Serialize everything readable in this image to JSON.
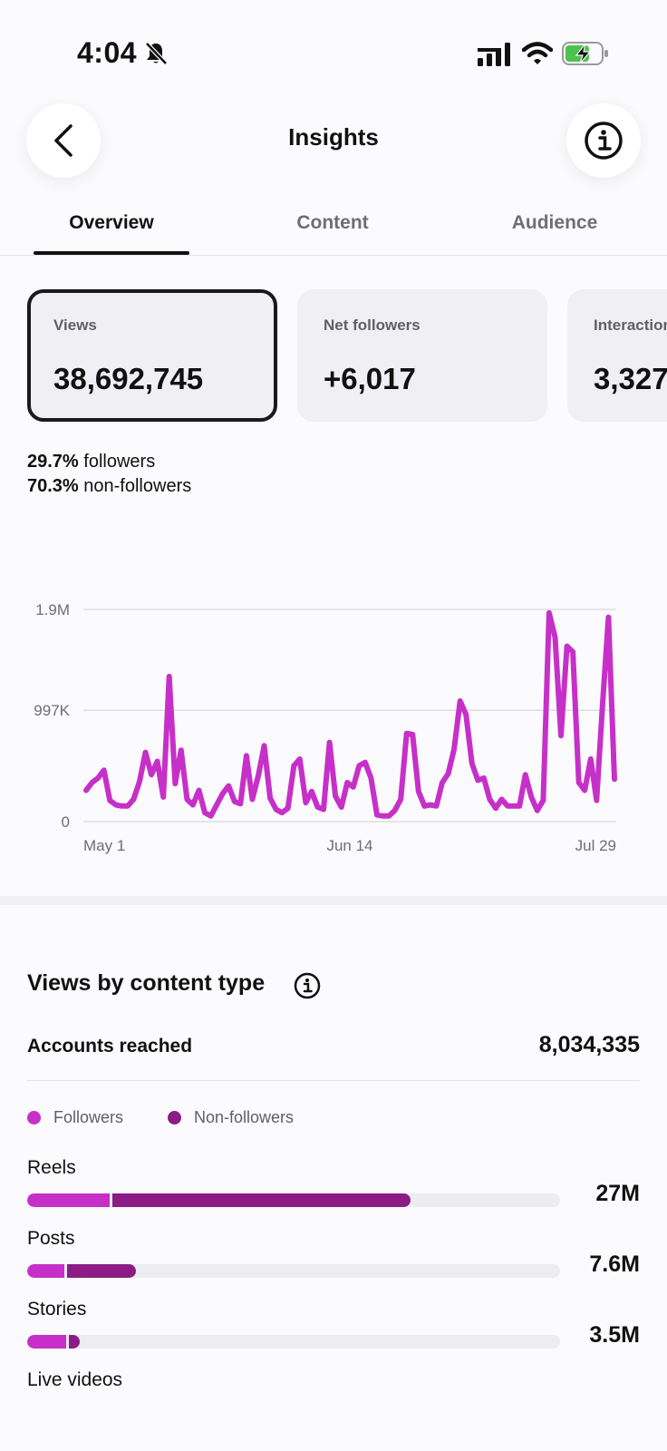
{
  "status_bar": {
    "time": "4:04",
    "icons": [
      "bell-slash-icon",
      "cellular-signal-icon",
      "wifi-icon",
      "battery-charging-icon"
    ]
  },
  "header": {
    "title": "Insights",
    "back_icon": "chevron-left-icon",
    "info_icon": "info-icon"
  },
  "tabs": [
    {
      "label": "Overview",
      "active": true
    },
    {
      "label": "Content",
      "active": false
    },
    {
      "label": "Audience",
      "active": false
    }
  ],
  "metric_cards": [
    {
      "label": "Views",
      "value": "38,692,745",
      "selected": true
    },
    {
      "label": "Net followers",
      "value": "+6,017",
      "selected": false
    },
    {
      "label": "Interactions",
      "value": "3,327",
      "selected": false
    }
  ],
  "audience_split": {
    "followers_pct": "29.7%",
    "followers_label": "followers",
    "nonfollowers_pct": "70.3%",
    "nonfollowers_label": "non-followers"
  },
  "chart_data": {
    "type": "line",
    "title": "",
    "xlabel": "",
    "ylabel": "",
    "x_tick_labels": [
      "May 1",
      "Jun 14",
      "Jul 29"
    ],
    "y_tick_labels": [
      "0",
      "997K",
      "1.9M"
    ],
    "ylim": [
      0,
      1900000
    ],
    "grid": true,
    "series": [
      {
        "color": "#c630c8",
        "values": [
          280000,
          350000,
          390000,
          460000,
          190000,
          150000,
          140000,
          140000,
          200000,
          360000,
          620000,
          420000,
          540000,
          220000,
          1300000,
          340000,
          640000,
          200000,
          150000,
          280000,
          80000,
          50000,
          150000,
          250000,
          320000,
          180000,
          160000,
          590000,
          200000,
          410000,
          680000,
          210000,
          110000,
          80000,
          120000,
          500000,
          560000,
          170000,
          270000,
          130000,
          110000,
          710000,
          230000,
          130000,
          350000,
          310000,
          500000,
          530000,
          390000,
          60000,
          50000,
          50000,
          100000,
          200000,
          790000,
          780000,
          270000,
          140000,
          150000,
          140000,
          350000,
          430000,
          650000,
          1080000,
          960000,
          520000,
          370000,
          390000,
          200000,
          120000,
          200000,
          140000,
          140000,
          140000,
          420000,
          220000,
          100000,
          190000,
          1870000,
          1650000,
          770000,
          1570000,
          1520000,
          350000,
          280000,
          560000,
          190000,
          1050000,
          1830000,
          380000
        ]
      }
    ]
  },
  "content_type_section": {
    "title": "Views by content type",
    "info_icon": "info-icon",
    "accounts_reached_label": "Accounts reached",
    "accounts_reached_value": "8,034,335",
    "legend": [
      {
        "label": "Followers",
        "color": "#c630c8"
      },
      {
        "label": "Non-followers",
        "color": "#8b1c86"
      }
    ],
    "rows": [
      {
        "label": "Reels",
        "value": "27M",
        "followers_fraction": 0.155,
        "nonfollowers_fraction": 0.56
      },
      {
        "label": "Posts",
        "value": "7.6M",
        "followers_fraction": 0.07,
        "nonfollowers_fraction": 0.13
      },
      {
        "label": "Stories",
        "value": "3.5M",
        "followers_fraction": 0.073,
        "nonfollowers_fraction": 0.02
      },
      {
        "label": "Live videos",
        "value": "",
        "followers_fraction": 0,
        "nonfollowers_fraction": 0
      }
    ]
  }
}
